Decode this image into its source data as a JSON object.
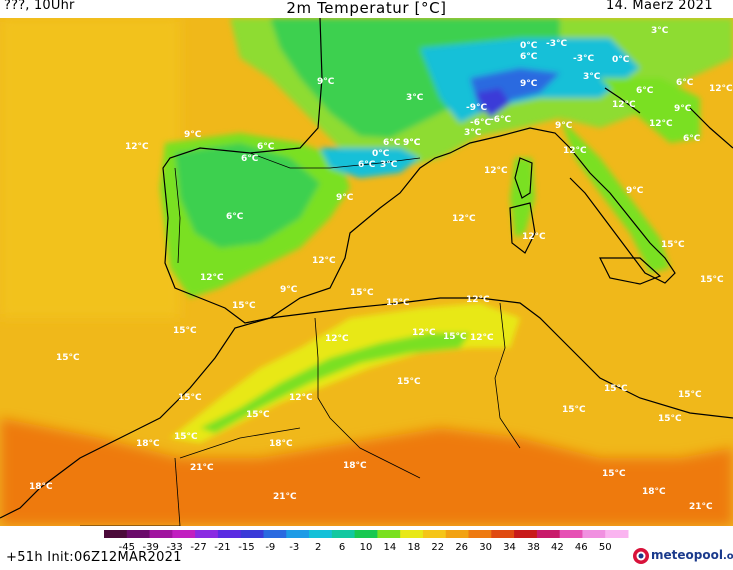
{
  "header": {
    "left": "???, 10Uhr",
    "title": "2m Temperatur [°C]",
    "right": "14. Maerz 2021"
  },
  "footer": {
    "run": "+51h  Init:06Z12MAR2021"
  },
  "logo": {
    "text": "meteopool",
    "suffix": ".org",
    "color": "#1a3a8c"
  },
  "legend": {
    "ticks": [
      "-45",
      "-39",
      "-33",
      "-27",
      "-21",
      "-15",
      "-9",
      "-3",
      "2",
      "6",
      "10",
      "14",
      "18",
      "22",
      "26",
      "30",
      "34",
      "38",
      "42",
      "46",
      "50"
    ],
    "colors": [
      "#4b0a3a",
      "#6a0a6a",
      "#a0149f",
      "#c11fc0",
      "#8a2be2",
      "#5b2be2",
      "#3a3ad8",
      "#2a6ae0",
      "#1e9be6",
      "#14c0d8",
      "#12c8a0",
      "#18c850",
      "#7ae020",
      "#e8e818",
      "#f5c518",
      "#f2a212",
      "#ee7a10",
      "#e04a10",
      "#c81a1a",
      "#c81a6a",
      "#e650b4",
      "#f090e0",
      "#fab4f0"
    ]
  },
  "labels": [
    {
      "t": "3°C"
    },
    {
      "t": "0°C"
    },
    {
      "t": "-3°C"
    },
    {
      "t": "6°C"
    },
    {
      "t": "-3°C"
    },
    {
      "t": "0°C"
    },
    {
      "t": "3°C"
    },
    {
      "t": "9°C"
    },
    {
      "t": "3°C"
    },
    {
      "t": "6°C"
    },
    {
      "t": "9°C"
    },
    {
      "t": "12°C"
    },
    {
      "t": "-9°C"
    },
    {
      "t": "-6°C"
    },
    {
      "t": "-6°C"
    },
    {
      "t": "3°C"
    },
    {
      "t": "9°C"
    },
    {
      "t": "12°C"
    },
    {
      "t": "6°C"
    },
    {
      "t": "12°C"
    },
    {
      "t": "9°C"
    },
    {
      "t": "12°C"
    },
    {
      "t": "6°C"
    },
    {
      "t": "6°C"
    },
    {
      "t": "9°C"
    },
    {
      "t": "0°C"
    },
    {
      "t": "6°C"
    },
    {
      "t": "3°C"
    },
    {
      "t": "9°C"
    },
    {
      "t": "6°C"
    },
    {
      "t": "9°C"
    },
    {
      "t": "12°C"
    },
    {
      "t": "9°C"
    },
    {
      "t": "6°C"
    },
    {
      "t": "12°C"
    },
    {
      "t": "12°C"
    },
    {
      "t": "9°C"
    },
    {
      "t": "12°C"
    },
    {
      "t": "12°C"
    },
    {
      "t": "12°C"
    },
    {
      "t": "9°C"
    },
    {
      "t": "15°C"
    },
    {
      "t": "15°C"
    },
    {
      "t": "15°C"
    },
    {
      "t": "12°C"
    },
    {
      "t": "15°C"
    },
    {
      "t": "12°C"
    },
    {
      "t": "15°C"
    },
    {
      "t": "12°C"
    },
    {
      "t": "15°C"
    },
    {
      "t": "15°C"
    },
    {
      "t": "15°C"
    },
    {
      "t": "12°C"
    },
    {
      "t": "15°C"
    },
    {
      "t": "15°C"
    },
    {
      "t": "15°C"
    },
    {
      "t": "15°C"
    },
    {
      "t": "18°C"
    },
    {
      "t": "18°C"
    },
    {
      "t": "21°C"
    },
    {
      "t": "18°C"
    },
    {
      "t": "18°C"
    },
    {
      "t": "21°C"
    },
    {
      "t": "18°C"
    },
    {
      "t": "21°C"
    },
    {
      "t": "15°C"
    },
    {
      "t": "15°C"
    },
    {
      "t": "12°C"
    },
    {
      "t": "15°C"
    },
    {
      "t": "15°C"
    },
    {
      "t": "15°C"
    },
    {
      "t": "6°C"
    }
  ]
}
